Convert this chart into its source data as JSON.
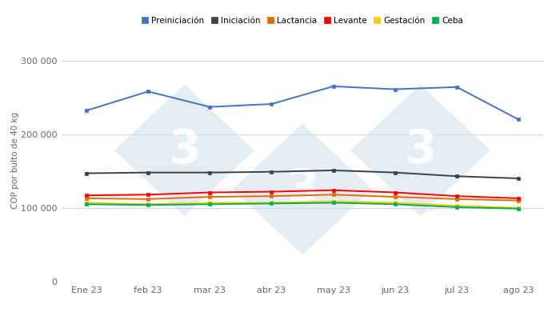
{
  "months": [
    "Ene 23",
    "feb 23",
    "mar 23",
    "abr 23",
    "may 23",
    "jun 23",
    "jul 23",
    "ago 23"
  ],
  "series": {
    "Preiniciación": {
      "values": [
        232000,
        258000,
        237000,
        241000,
        265000,
        261000,
        264000,
        220000
      ],
      "color": "#4472C4"
    },
    "Iniciación": {
      "values": [
        147000,
        148000,
        148000,
        149000,
        151000,
        148000,
        143000,
        140000
      ],
      "color": "#404040"
    },
    "Lactancia": {
      "values": [
        113000,
        112000,
        115000,
        116000,
        118000,
        115000,
        112000,
        110000
      ],
      "color": "#E36C09"
    },
    "Levante": {
      "values": [
        117000,
        118000,
        121000,
        122000,
        124000,
        121000,
        116000,
        113000
      ],
      "color": "#FF0000"
    },
    "Gestación": {
      "values": [
        107000,
        105000,
        107000,
        107000,
        109000,
        107000,
        103000,
        100000
      ],
      "color": "#FFCC00"
    },
    "Ceba": {
      "values": [
        105000,
        104000,
        105000,
        106000,
        107000,
        105000,
        101000,
        99000
      ],
      "color": "#00B050"
    }
  },
  "ylabel": "COP por bulto de 40 kg",
  "ylim": [
    0,
    330000
  ],
  "yticks": [
    0,
    100000,
    200000,
    300000
  ],
  "ytick_labels": [
    "0",
    "100 000",
    "200 000",
    "300 000"
  ],
  "background_color": "#ffffff",
  "grid_color": "#d0d0d0",
  "watermark_color": "#c5d7e8",
  "watermark_alpha": 0.45
}
